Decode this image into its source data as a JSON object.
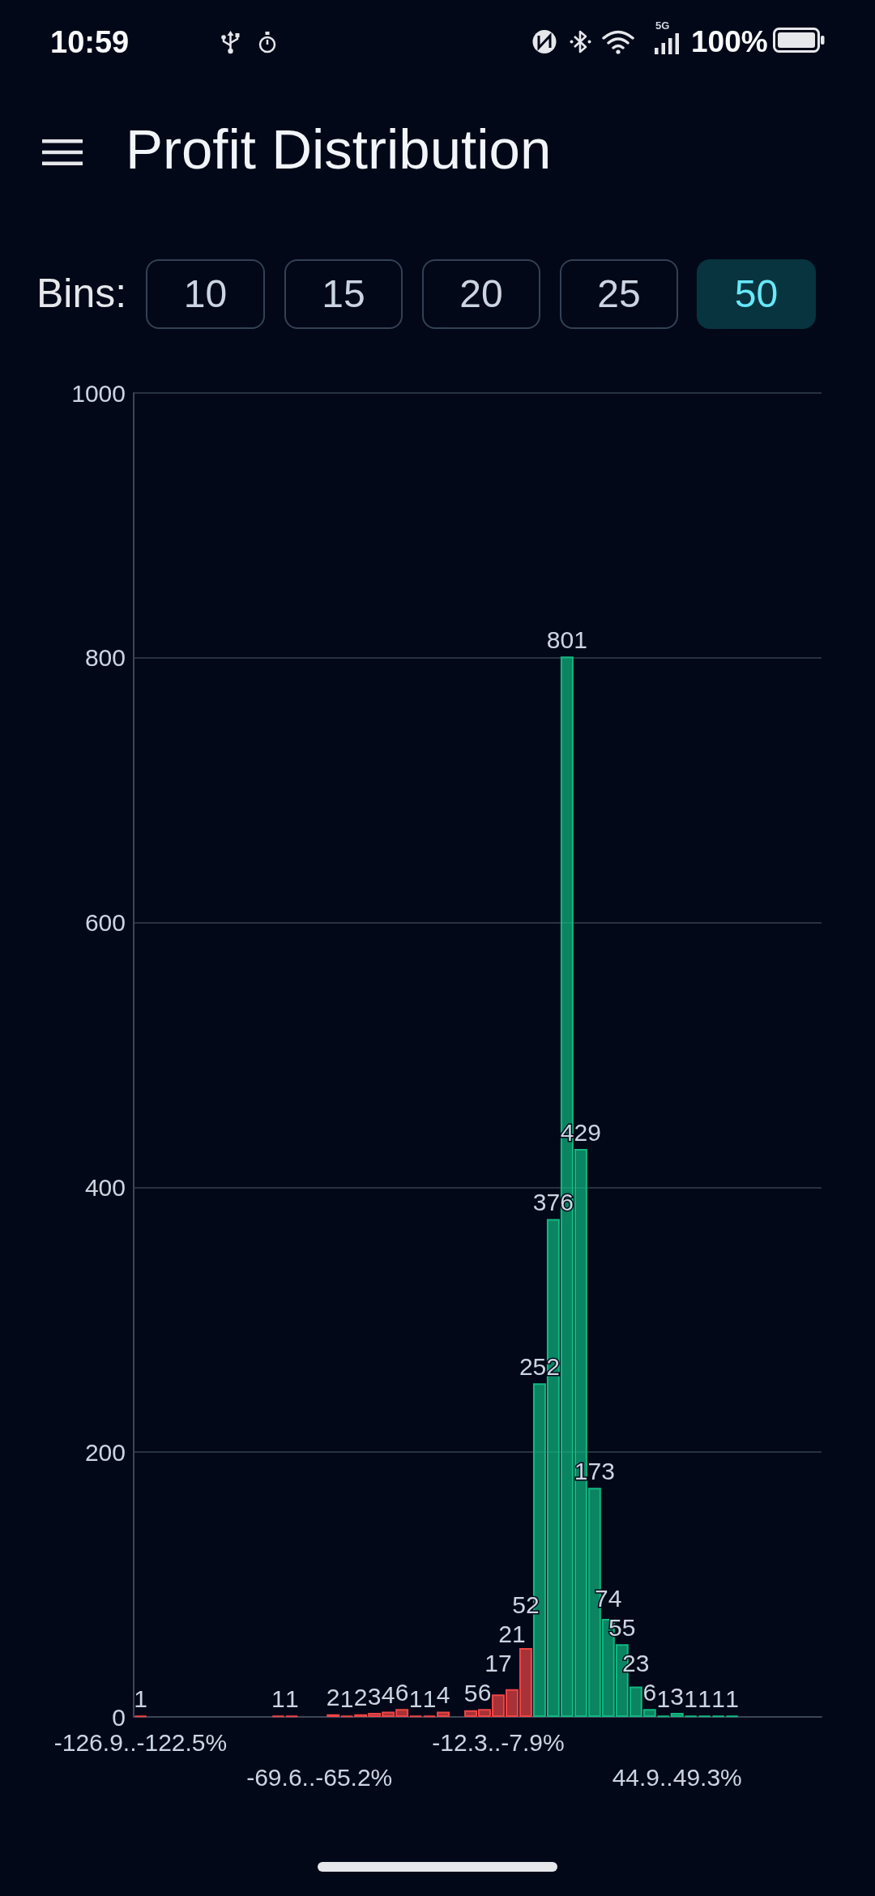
{
  "chart_data": {
    "type": "bar",
    "title": "Profit Distribution",
    "annotations": [
      "10:59",
      "5G",
      "100%",
      "Bins:",
      "10",
      "15",
      "20",
      "25",
      "50"
    ],
    "categories": [
      "-126.9..-122.5%",
      null,
      null,
      null,
      null,
      null,
      null,
      null,
      null,
      null,
      null,
      null,
      null,
      "-69.6..-65.2%",
      null,
      null,
      null,
      null,
      null,
      null,
      null,
      null,
      null,
      null,
      null,
      null,
      "-12.3..-7.9%",
      null,
      null,
      null,
      null,
      null,
      null,
      null,
      null,
      null,
      null,
      null,
      null,
      "44.9..49.3%",
      null,
      null,
      null,
      null,
      null,
      null,
      null,
      null,
      null,
      null
    ],
    "values": [
      1,
      0,
      0,
      0,
      0,
      0,
      0,
      0,
      0,
      0,
      1,
      1,
      0,
      0,
      2,
      1,
      2,
      3,
      4,
      6,
      1,
      1,
      4,
      0,
      5,
      6,
      17,
      21,
      52,
      252,
      376,
      801,
      429,
      173,
      74,
      55,
      23,
      6,
      1,
      3,
      1,
      1,
      1,
      1,
      0,
      0,
      0,
      0,
      0,
      0
    ],
    "value_labels": [
      "1",
      null,
      null,
      null,
      null,
      null,
      null,
      null,
      null,
      null,
      "1",
      "1",
      null,
      null,
      "2",
      "1",
      "2",
      "3",
      "4",
      "6",
      "1",
      "1",
      "4",
      null,
      "5",
      "6",
      "17",
      "21",
      "52",
      "252",
      "376",
      "801",
      "429",
      "173",
      "74",
      "55",
      "23",
      "6",
      "1",
      "3",
      "1",
      "1",
      "1",
      "1",
      null,
      null,
      null,
      null,
      null,
      null
    ],
    "colors": [
      "#ef4444",
      "#ef4444",
      "#ef4444",
      "#ef4444",
      "#ef4444",
      "#ef4444",
      "#ef4444",
      "#ef4444",
      "#ef4444",
      "#ef4444",
      "#ef4444",
      "#ef4444",
      "#ef4444",
      "#ef4444",
      "#ef4444",
      "#ef4444",
      "#ef4444",
      "#ef4444",
      "#ef4444",
      "#ef4444",
      "#ef4444",
      "#ef4444",
      "#ef4444",
      "#ef4444",
      "#ef4444",
      "#ef4444",
      "#ef4444",
      "#ef4444",
      "#ef4444",
      "#10b981",
      "#10b981",
      "#10b981",
      "#10b981",
      "#10b981",
      "#10b981",
      "#10b981",
      "#10b981",
      "#10b981",
      "#10b981",
      "#10b981",
      "#10b981",
      "#10b981",
      "#10b981",
      "#10b981",
      "#10b981",
      "#10b981",
      "#10b981",
      "#10b981",
      "#10b981",
      "#10b981"
    ],
    "ylim": [
      0,
      1000
    ],
    "yticks": [
      0,
      200,
      400,
      600,
      800,
      1000
    ],
    "grid": "y"
  }
}
